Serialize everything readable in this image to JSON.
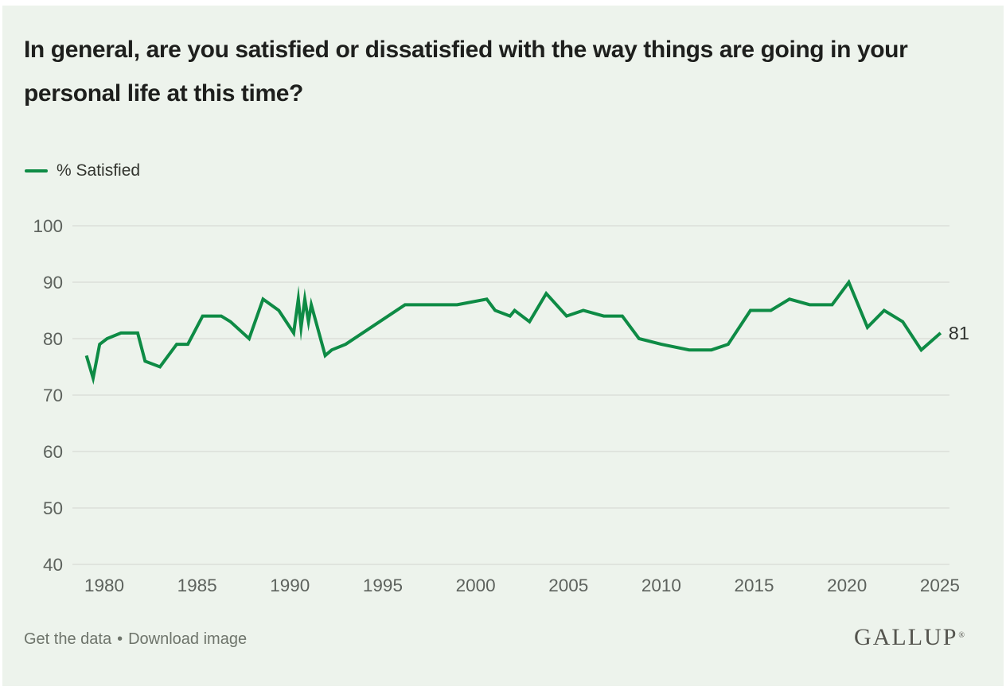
{
  "title": "In general, are you satisfied or dissatisfied with the way things are going in your personal life at this time?",
  "legend": {
    "label": "% Satisfied"
  },
  "footer": {
    "get_data": "Get the data",
    "separator": "•",
    "download": "Download image",
    "brand": "GALLUP",
    "brand_mark": "®"
  },
  "colors": {
    "background": "#edf3ec",
    "line": "#0e8b45",
    "grid": "#dbe0da",
    "axis_labels": "#5d625d",
    "title": "#1e1f1d",
    "legend_text": "#33352f",
    "footer_link": "#6e746b",
    "brand": "#54544e",
    "end_label": "#2f322f"
  },
  "chart_data": {
    "type": "line",
    "title": "In general, are you satisfied or dissatisfied with the way things are going in your personal life at this time?",
    "xlabel": "",
    "ylabel": "",
    "xlim": [
      1978.7,
      2026.5
    ],
    "ylim": [
      40,
      100
    ],
    "x_ticks": [
      1980,
      1985,
      1990,
      1995,
      2000,
      2005,
      2010,
      2015,
      2020,
      2025
    ],
    "y_ticks": [
      40,
      50,
      60,
      70,
      80,
      90,
      100
    ],
    "grid": "horizontal-only",
    "legend_position": "top-left",
    "last_point_label": "81",
    "latest_value": {
      "year": 2025,
      "value": 81
    },
    "series": [
      {
        "name": "% Satisfied",
        "color": "#0e8b45",
        "points": [
          [
            1979.04,
            77
          ],
          [
            1979.4,
            73
          ],
          [
            1979.75,
            79
          ],
          [
            1980.15,
            80
          ],
          [
            1980.9,
            81
          ],
          [
            1981.8,
            81
          ],
          [
            1982.2,
            76
          ],
          [
            1983.0,
            75
          ],
          [
            1983.9,
            79
          ],
          [
            1984.5,
            79
          ],
          [
            1985.3,
            84
          ],
          [
            1986.3,
            84
          ],
          [
            1986.8,
            83
          ],
          [
            1987.8,
            80
          ],
          [
            1988.55,
            87
          ],
          [
            1989.4,
            85
          ],
          [
            1990.2,
            81
          ],
          [
            1990.45,
            87
          ],
          [
            1990.6,
            82
          ],
          [
            1990.8,
            87
          ],
          [
            1991.0,
            83
          ],
          [
            1991.15,
            86
          ],
          [
            1991.9,
            77
          ],
          [
            1992.25,
            78
          ],
          [
            1993.0,
            79
          ],
          [
            1996.2,
            86
          ],
          [
            1999.0,
            86
          ],
          [
            2000.6,
            87
          ],
          [
            2001.05,
            85
          ],
          [
            2001.85,
            84
          ],
          [
            2002.1,
            85
          ],
          [
            2002.9,
            83
          ],
          [
            2003.8,
            88
          ],
          [
            2004.9,
            84
          ],
          [
            2005.8,
            85
          ],
          [
            2006.9,
            84
          ],
          [
            2007.9,
            84
          ],
          [
            2008.8,
            80
          ],
          [
            2010.0,
            79
          ],
          [
            2011.5,
            78
          ],
          [
            2012.7,
            78
          ],
          [
            2013.6,
            79
          ],
          [
            2014.8,
            85
          ],
          [
            2015.9,
            85
          ],
          [
            2016.9,
            87
          ],
          [
            2018.0,
            86
          ],
          [
            2019.2,
            86
          ],
          [
            2020.1,
            90
          ],
          [
            2021.1,
            82
          ],
          [
            2022.0,
            85
          ],
          [
            2023.0,
            83
          ],
          [
            2024.0,
            78
          ],
          [
            2025.04,
            81
          ]
        ]
      }
    ]
  }
}
